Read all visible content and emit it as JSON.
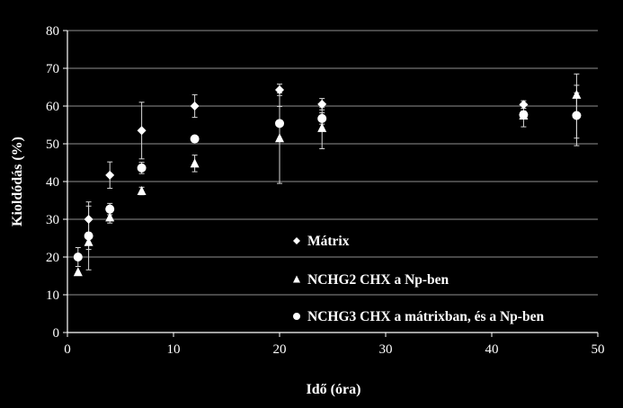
{
  "chart_data": {
    "type": "scatter",
    "title": "",
    "xlabel": "Idő (óra)",
    "ylabel": "Kioldódás (%)",
    "xlim": [
      0,
      50
    ],
    "ylim": [
      0,
      80
    ],
    "x_ticks": [
      "0",
      "10",
      "20",
      "30",
      "40",
      "50"
    ],
    "y_ticks": [
      "0",
      "10",
      "20",
      "30",
      "40",
      "50",
      "60",
      "70",
      "80"
    ],
    "grid": "horizontal",
    "legend_position": "bottom-right",
    "background": "#000000",
    "marker_color": "#ffffff",
    "series": [
      {
        "name": "Mátrix",
        "marker": "diamond",
        "x": [
          2,
          4,
          7,
          12,
          20,
          24,
          43,
          48
        ],
        "y": [
          30,
          41.7,
          53.5,
          60,
          64.3,
          60.5,
          60.4,
          57.5
        ],
        "err": [
          3.5,
          3.5,
          7.5,
          3,
          1.5,
          1.5,
          1,
          8
        ]
      },
      {
        "name": "NCHG2 CHX a Np-ben",
        "marker": "triangle",
        "x": [
          1,
          2,
          4,
          7,
          12,
          20,
          24,
          43,
          48
        ],
        "y": [
          16,
          24,
          30.5,
          37.5,
          44.8,
          51.5,
          54.2,
          57.5,
          63
        ],
        "err": [
          0,
          2,
          1.5,
          1,
          2.2,
          12,
          5.5,
          3,
          5.5
        ]
      },
      {
        "name": "NCHG3 CHX a mátrixban, és a Np-ben",
        "marker": "circle",
        "x": [
          1,
          2,
          4,
          7,
          12,
          20,
          24,
          43,
          48
        ],
        "y": [
          20,
          25.6,
          32.7,
          43.6,
          51.3,
          55.4,
          56.7,
          57.7,
          57.5
        ],
        "err": [
          2.5,
          9,
          1.5,
          1.5,
          0,
          4.5,
          1.5,
          1,
          6
        ]
      }
    ]
  }
}
